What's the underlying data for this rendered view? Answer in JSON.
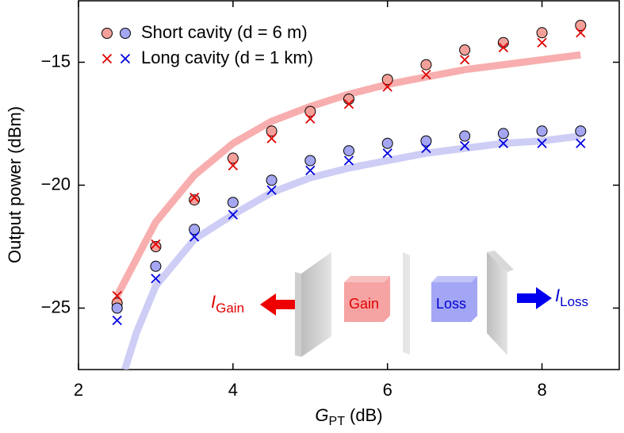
{
  "chart_data": {
    "type": "scatter",
    "y_label": "Output power (dBm)",
    "x_label": {
      "symbol": "G",
      "subscript": "PT",
      "unit": "(dB)"
    },
    "xlim": [
      2,
      9
    ],
    "xticks": [
      2,
      4,
      6,
      8
    ],
    "ylim": [
      -27.5,
      -12.5
    ],
    "yticks": [
      {
        "value": -25,
        "label": "−25"
      },
      {
        "value": -20,
        "label": "−20"
      },
      {
        "value": -15,
        "label": "−15"
      }
    ],
    "legend_position": "upper left",
    "legend": [
      "Short cavity (d = 6 m)",
      "Long cavity (d = 1 km)"
    ],
    "series": [
      {
        "marker": "fit",
        "color": "#f7a5a5",
        "x": [
          2.5,
          3,
          3.5,
          4,
          4.5,
          5,
          5.5,
          6,
          6.5,
          7,
          7.5,
          8,
          8.5
        ],
        "values": [
          -24.5,
          -21.5,
          -19.6,
          -18.3,
          -17.4,
          -16.8,
          -16.3,
          -15.9,
          -15.6,
          -15.3,
          -15.1,
          -14.9,
          -14.7
        ]
      },
      {
        "marker": "fit",
        "color": "#c8c8f5",
        "x": [
          2.6,
          2.75,
          3,
          3.5,
          4,
          4.5,
          5,
          5.5,
          6,
          6.5,
          7,
          7.5,
          8,
          8.5
        ],
        "values": [
          -27.5,
          -26.0,
          -24.1,
          -22.2,
          -21.2,
          -20.3,
          -19.7,
          -19.3,
          -19.0,
          -18.7,
          -18.5,
          -18.3,
          -18.2,
          -18.0
        ]
      },
      {
        "marker": "circle",
        "legend": 0,
        "color": "#f4a09a",
        "x": [
          2.5,
          3,
          3.5,
          4,
          4.5,
          5,
          5.5,
          6,
          6.5,
          7,
          7.5,
          8,
          8.5
        ],
        "values": [
          -24.8,
          -22.5,
          -20.6,
          -18.9,
          -17.8,
          -17.0,
          -16.5,
          -15.7,
          -15.1,
          -14.5,
          -14.2,
          -13.8,
          -13.5
        ]
      },
      {
        "marker": "circle",
        "legend": 0,
        "color": "#a4a6f2",
        "x": [
          2.5,
          3,
          3.5,
          4,
          4.5,
          5,
          5.5,
          6,
          6.5,
          7,
          7.5,
          8,
          8.5
        ],
        "values": [
          -25.0,
          -23.3,
          -21.8,
          -20.7,
          -19.8,
          -19.0,
          -18.6,
          -18.3,
          -18.2,
          -18.0,
          -17.9,
          -17.8,
          -17.8
        ]
      },
      {
        "marker": "cross",
        "legend": 1,
        "color": "#e00000",
        "x": [
          2.5,
          3,
          3.5,
          4,
          4.5,
          5,
          5.5,
          6,
          6.5,
          7,
          7.5,
          8,
          8.5
        ],
        "values": [
          -24.5,
          -22.4,
          -20.5,
          -19.2,
          -18.1,
          -17.3,
          -16.7,
          -16.0,
          -15.5,
          -14.9,
          -14.4,
          -14.2,
          -13.8
        ]
      },
      {
        "marker": "cross",
        "legend": 1,
        "color": "#0000e0",
        "x": [
          2.5,
          3,
          3.5,
          4,
          4.5,
          5,
          5.5,
          6,
          6.5,
          7,
          7.5,
          8,
          8.5
        ],
        "values": [
          -25.5,
          -23.8,
          -22.1,
          -21.2,
          -20.2,
          -19.4,
          -19.0,
          -18.7,
          -18.5,
          -18.4,
          -18.3,
          -18.3,
          -18.3
        ]
      }
    ],
    "inset": {
      "gain_label": "Gain",
      "loss_label": "Loss",
      "output_gain": {
        "symbol": "I",
        "subscript": "Gain"
      },
      "output_loss": {
        "symbol": "I",
        "subscript": "Loss"
      }
    }
  }
}
